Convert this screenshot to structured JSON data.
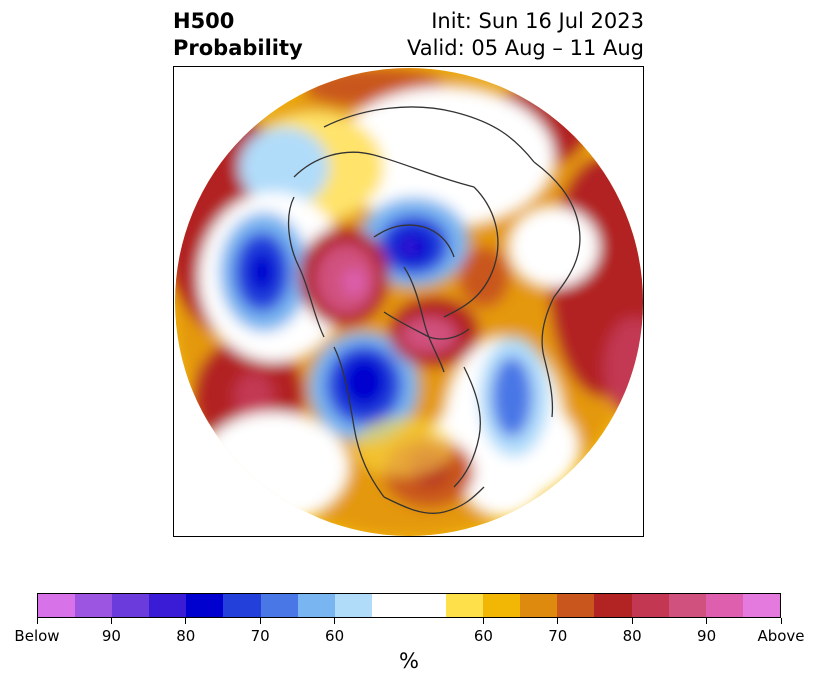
{
  "title": {
    "left_line1": "H500",
    "left_line2": "Probability",
    "right_line1": "Init: Sun 16 Jul 2023",
    "right_line2": "Valid: 05 Aug – 11 Aug"
  },
  "map": {
    "projection": "north-polar-stereographic",
    "ocean_color": "#ffffff",
    "coastline_color": "#333333"
  },
  "colorbar": {
    "unit_label": "%",
    "segments": [
      {
        "color": "#d772e8",
        "kind": "below"
      },
      {
        "color": "#9c55e0",
        "kind": "below"
      },
      {
        "color": "#6b3bdc",
        "kind": "below"
      },
      {
        "color": "#3a1bd6",
        "kind": "below"
      },
      {
        "color": "#0000cf",
        "kind": "below"
      },
      {
        "color": "#2340db",
        "kind": "below"
      },
      {
        "color": "#4a77e6",
        "kind": "below"
      },
      {
        "color": "#79b5f0",
        "kind": "below"
      },
      {
        "color": "#b0dcfa",
        "kind": "below"
      },
      {
        "color": "#ffffff",
        "kind": "neutral"
      },
      {
        "color": "#fde04a",
        "kind": "above"
      },
      {
        "color": "#f2b705",
        "kind": "above"
      },
      {
        "color": "#de8a0f",
        "kind": "above"
      },
      {
        "color": "#c9561c",
        "kind": "above"
      },
      {
        "color": "#b22424",
        "kind": "above"
      },
      {
        "color": "#c33752",
        "kind": "above"
      },
      {
        "color": "#d0517e",
        "kind": "above"
      },
      {
        "color": "#dd5fad",
        "kind": "above"
      },
      {
        "color": "#e47ade",
        "kind": "above"
      }
    ],
    "tick_labels": [
      "Below",
      "90",
      "80",
      "70",
      "60",
      "60",
      "70",
      "80",
      "90",
      "Above"
    ]
  }
}
